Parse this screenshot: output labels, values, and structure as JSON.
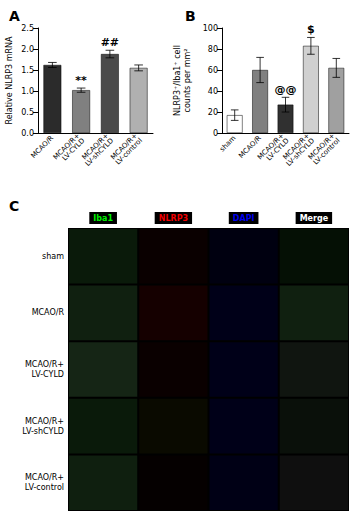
{
  "chart_data": [
    {
      "type": "bar",
      "title": "A",
      "categories": [
        "MCAO/R",
        "MCAO/R+\nLV-CYLD",
        "MCAO/R+\nLV-shCYLD",
        "MCAO/R+\nLV-control"
      ],
      "values": [
        1.62,
        1.02,
        1.88,
        1.55
      ],
      "errors": [
        0.06,
        0.05,
        0.09,
        0.07
      ],
      "colors": [
        "#2b2b2b",
        "#808080",
        "#4a4a4a",
        "#b0b0b0"
      ],
      "ylabel": "Relative NLRP3 mRNA",
      "ylim": [
        0.0,
        2.5
      ],
      "yticks": [
        {
          "value": 0,
          "label": "0.0"
        },
        0.5,
        {
          "value": 1,
          "label": "1.0"
        },
        1.5,
        {
          "value": 2,
          "label": "2.0"
        },
        2.5
      ],
      "grid": false,
      "annotations": [
        {
          "text": "**",
          "category": "MCAO/R+\nLV-CYLD"
        },
        {
          "text": "##",
          "category": "MCAO/R+\nLV-shCYLD"
        }
      ]
    },
    {
      "type": "bar",
      "title": "B",
      "categories": [
        "sham",
        "MCAO/R",
        "MCAO/R+\nLV-CYLD",
        "MCAO/R+\nLV-shCYLD",
        "MCAO/R+\nLV-control"
      ],
      "values": [
        17.0,
        60.0,
        27.0,
        83.0,
        62.0
      ],
      "errors": [
        5.0,
        12.0,
        7.0,
        8.0,
        9.0
      ],
      "colors": [
        "#ffffff",
        "#808080",
        "#303030",
        "#d0d0d0",
        "#a0a0a0"
      ],
      "ylabel": "NLRP3⁺/Iba1⁺ cell\ncounts per mm²",
      "ylim": [
        0,
        100
      ],
      "yticks": [
        0,
        20,
        40,
        60,
        80,
        100
      ],
      "grid": false,
      "annotations": [
        {
          "text": "@@",
          "category": "MCAO/R+\nLV-CYLD"
        },
        {
          "text": "$",
          "category": "MCAO/R+\nLV-shCYLD"
        }
      ]
    },
    {
      "type": "heatmap",
      "title": "C",
      "categories": [
        "Iba1",
        "NLRP3",
        "DAPI",
        "Merge"
      ],
      "category_colors": [
        "#00ee00",
        "#ee0000",
        "#0000ee",
        "#ffffff"
      ],
      "rows": [
        "sham",
        "MCAO/R",
        "MCAO/R+\nLV-CYLD",
        "MCAO/R+\nLV-shCYLD",
        "MCAO/R+\nLV-control"
      ],
      "colors": [
        [
          "#0a1a0a",
          "#0a0000",
          "#000010",
          "#051005"
        ],
        [
          "#102010",
          "#150000",
          "#000018",
          "#102010"
        ],
        [
          "#152515",
          "#0a0000",
          "#000018",
          "#101510"
        ],
        [
          "#0a1a0a",
          "#0a0a00",
          "#000018",
          "#0a100a"
        ],
        [
          "#0f1f0f",
          "#050000",
          "#000015",
          "#0f0f0f"
        ]
      ]
    }
  ]
}
